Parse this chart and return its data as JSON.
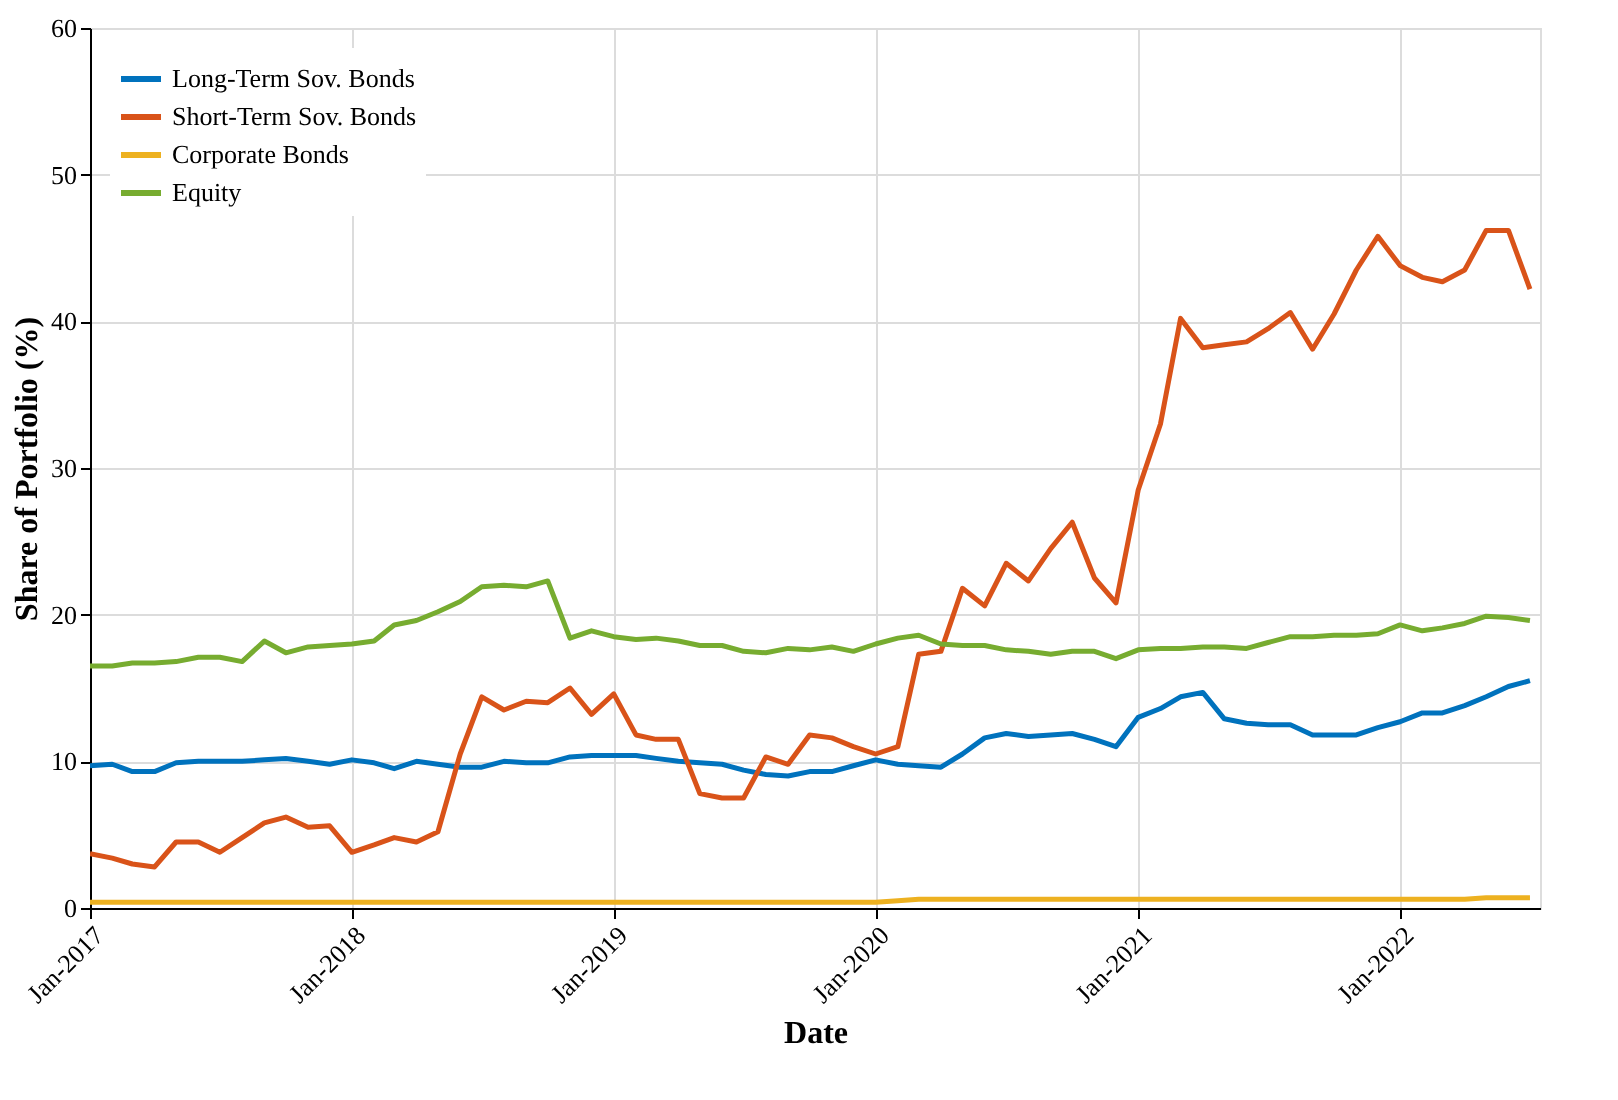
{
  "chart_data": {
    "type": "line",
    "xlabel": "Date",
    "ylabel": "Share of Portfolio (%)",
    "x": [
      "2017-01",
      "2017-02",
      "2017-03",
      "2017-04",
      "2017-05",
      "2017-06",
      "2017-07",
      "2017-08",
      "2017-09",
      "2017-10",
      "2017-11",
      "2017-12",
      "2018-01",
      "2018-02",
      "2018-03",
      "2018-04",
      "2018-05",
      "2018-06",
      "2018-07",
      "2018-08",
      "2018-09",
      "2018-10",
      "2018-11",
      "2018-12",
      "2019-01",
      "2019-02",
      "2019-03",
      "2019-04",
      "2019-05",
      "2019-06",
      "2019-07",
      "2019-08",
      "2019-09",
      "2019-10",
      "2019-11",
      "2019-12",
      "2020-01",
      "2020-02",
      "2020-03",
      "2020-04",
      "2020-05",
      "2020-06",
      "2020-07",
      "2020-08",
      "2020-09",
      "2020-10",
      "2020-11",
      "2020-12",
      "2021-01",
      "2021-02",
      "2021-03",
      "2021-04",
      "2021-05",
      "2021-06",
      "2021-07",
      "2021-08",
      "2021-09",
      "2021-10",
      "2021-11",
      "2021-12",
      "2022-01",
      "2022-02",
      "2022-03",
      "2022-04",
      "2022-05",
      "2022-06",
      "2022-07"
    ],
    "series": [
      {
        "name": "Long-Term Sov. Bonds",
        "color": "#0072bd",
        "values": [
          9.7,
          9.8,
          9.3,
          9.3,
          9.9,
          10.0,
          10.0,
          10.0,
          10.1,
          10.2,
          10.0,
          9.8,
          10.1,
          9.9,
          9.5,
          10.0,
          9.8,
          9.6,
          9.6,
          10.0,
          9.9,
          9.9,
          10.3,
          10.4,
          10.4,
          10.4,
          10.2,
          10.0,
          9.9,
          9.8,
          9.4,
          9.1,
          9.0,
          9.3,
          9.3,
          9.7,
          10.1,
          9.8,
          9.7,
          9.6,
          10.5,
          11.6,
          11.9,
          11.7,
          11.8,
          11.9,
          11.5,
          11.0,
          13.0,
          13.6,
          14.4,
          14.7,
          12.9,
          12.6,
          12.5,
          12.5,
          11.8,
          11.8,
          11.8,
          12.3,
          12.7,
          13.3,
          13.3,
          13.8,
          14.4,
          15.1,
          15.5
        ]
      },
      {
        "name": "Short-Term Sov. Bonds",
        "color": "#d95319",
        "values": [
          3.7,
          3.4,
          3.0,
          2.8,
          4.5,
          4.5,
          3.8,
          4.8,
          5.8,
          6.2,
          5.5,
          5.6,
          3.8,
          4.3,
          4.8,
          4.5,
          5.2,
          10.5,
          14.4,
          13.5,
          14.1,
          14.0,
          15.0,
          13.2,
          14.6,
          11.8,
          11.5,
          11.5,
          7.8,
          7.5,
          7.5,
          10.3,
          9.8,
          11.8,
          11.6,
          11.0,
          10.5,
          11.0,
          17.3,
          17.5,
          21.8,
          20.6,
          23.5,
          22.3,
          24.5,
          26.3,
          22.5,
          20.8,
          28.5,
          33.0,
          40.2,
          38.2,
          38.4,
          38.6,
          39.5,
          40.6,
          38.1,
          40.5,
          43.5,
          45.8,
          43.8,
          43.0,
          42.7,
          43.5,
          46.2,
          46.2,
          42.2
        ]
      },
      {
        "name": "Corporate Bonds",
        "color": "#edb120",
        "values": [
          0.4,
          0.4,
          0.4,
          0.4,
          0.4,
          0.4,
          0.4,
          0.4,
          0.4,
          0.4,
          0.4,
          0.4,
          0.4,
          0.4,
          0.4,
          0.4,
          0.4,
          0.4,
          0.4,
          0.4,
          0.4,
          0.4,
          0.4,
          0.4,
          0.4,
          0.4,
          0.4,
          0.4,
          0.4,
          0.4,
          0.4,
          0.4,
          0.4,
          0.4,
          0.4,
          0.4,
          0.4,
          0.5,
          0.6,
          0.6,
          0.6,
          0.6,
          0.6,
          0.6,
          0.6,
          0.6,
          0.6,
          0.6,
          0.6,
          0.6,
          0.6,
          0.6,
          0.6,
          0.6,
          0.6,
          0.6,
          0.6,
          0.6,
          0.6,
          0.6,
          0.6,
          0.6,
          0.6,
          0.6,
          0.7,
          0.7,
          0.7
        ]
      },
      {
        "name": "Equity",
        "color": "#77ac30",
        "values": [
          16.5,
          16.5,
          16.7,
          16.7,
          16.8,
          17.1,
          17.1,
          16.8,
          18.2,
          17.4,
          17.8,
          17.9,
          18.0,
          18.2,
          19.3,
          19.6,
          20.2,
          20.9,
          21.9,
          22.0,
          21.9,
          22.3,
          18.4,
          18.9,
          18.5,
          18.3,
          18.4,
          18.2,
          17.9,
          17.9,
          17.5,
          17.4,
          17.7,
          17.6,
          17.8,
          17.5,
          18.0,
          18.4,
          18.6,
          18.0,
          17.9,
          17.9,
          17.6,
          17.5,
          17.3,
          17.5,
          17.5,
          17.0,
          17.6,
          17.7,
          17.7,
          17.8,
          17.8,
          17.7,
          18.1,
          18.5,
          18.5,
          18.6,
          18.6,
          18.7,
          19.3,
          18.9,
          19.1,
          19.4,
          19.9,
          19.8,
          19.6
        ]
      }
    ],
    "xlim": [
      "2017-01-01",
      "2022-07-15"
    ],
    "xticks": [
      {
        "value": "2017-01-01",
        "label": "Jan-2017"
      },
      {
        "value": "2018-01-01",
        "label": "Jan-2018"
      },
      {
        "value": "2019-01-01",
        "label": "Jan-2019"
      },
      {
        "value": "2020-01-01",
        "label": "Jan-2020"
      },
      {
        "value": "2021-01-01",
        "label": "Jan-2021"
      },
      {
        "value": "2022-01-01",
        "label": "Jan-2022"
      }
    ],
    "ylim": [
      0,
      60
    ],
    "yticks": [
      0,
      10,
      20,
      30,
      40,
      50,
      60
    ],
    "grid": true,
    "legend": "top left",
    "marker": "none",
    "line_style": "solid"
  }
}
